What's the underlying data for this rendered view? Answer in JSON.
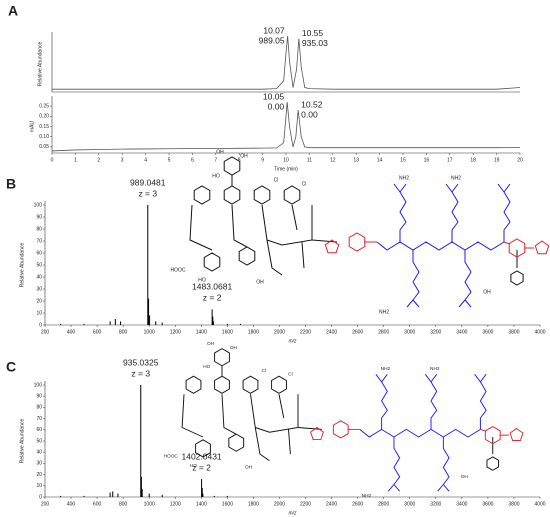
{
  "chart_data": [
    {
      "type": "line",
      "panel": "A",
      "ylabel": "Relative Abundance",
      "color": "#555555",
      "xlim": [
        0,
        20
      ],
      "ylim": [
        0,
        100
      ],
      "x": [
        0,
        1,
        2,
        3,
        4,
        5,
        6,
        7,
        8,
        9,
        9.6,
        9.9,
        10.0,
        10.07,
        10.15,
        10.3,
        10.45,
        10.55,
        10.65,
        10.8,
        11,
        12,
        13,
        14,
        15,
        16,
        17,
        18,
        19,
        20
      ],
      "values": [
        5,
        5,
        5,
        5,
        5,
        5,
        5,
        5,
        5,
        5,
        6,
        20,
        70,
        100,
        55,
        8,
        40,
        95,
        45,
        8,
        6,
        5,
        5,
        5,
        5,
        5,
        5,
        5,
        5,
        8
      ],
      "annotations": [
        {
          "x": 10.07,
          "text": [
            "10.07",
            "989.05"
          ]
        },
        {
          "x": 10.55,
          "text": [
            "10.55",
            "935.03"
          ]
        }
      ]
    },
    {
      "type": "line",
      "ylabel": "mAU",
      "xlabel": "Time (min)",
      "color": "#555555",
      "xlim": [
        0,
        20
      ],
      "xticks": [
        0,
        1,
        2,
        3,
        4,
        5,
        6,
        7,
        8,
        9,
        10,
        11,
        12,
        13,
        14,
        15,
        16,
        17,
        18,
        19,
        20
      ],
      "ylim": [
        0.02,
        0.28
      ],
      "yticks": [
        0.05,
        {
          "value": 0.1,
          "label": "0.10"
        },
        0.15,
        {
          "value": 0.2,
          "label": "0.20"
        },
        0.25
      ],
      "x": [
        0,
        1,
        2,
        3,
        4,
        5,
        6,
        7,
        8,
        9,
        9.6,
        9.9,
        10.0,
        10.05,
        10.15,
        10.3,
        10.42,
        10.52,
        10.65,
        10.8,
        11,
        12,
        13,
        14,
        15,
        16,
        17,
        18,
        19,
        20
      ],
      "values": [
        0.03,
        0.035,
        0.037,
        0.039,
        0.04,
        0.041,
        0.042,
        0.042,
        0.043,
        0.044,
        0.045,
        0.07,
        0.2,
        0.27,
        0.15,
        0.05,
        0.1,
        0.23,
        0.1,
        0.05,
        0.046,
        0.046,
        0.046,
        0.046,
        0.046,
        0.046,
        0.046,
        0.046,
        0.046,
        0.047
      ],
      "annotations": [
        {
          "x": 10.05,
          "text": [
            "10.05",
            "0.00"
          ]
        },
        {
          "x": 10.52,
          "text": [
            "10.52",
            "0.00"
          ]
        }
      ]
    },
    {
      "type": "spectrum",
      "panel": "B",
      "ylabel": "Relative Abundance",
      "xlabel": "m/z",
      "color": "#000000",
      "xlim": [
        200,
        4000
      ],
      "xticks": [
        200,
        400,
        600,
        800,
        1000,
        1200,
        1400,
        1600,
        1800,
        2000,
        2200,
        2400,
        2600,
        2800,
        3000,
        3200,
        3400,
        3600,
        3800,
        4000
      ],
      "ylim": [
        0,
        100
      ],
      "yticks": [
        0,
        10,
        20,
        30,
        40,
        50,
        60,
        70,
        80,
        90,
        100
      ],
      "x": [
        320,
        500,
        700,
        740,
        780,
        989.0481,
        995,
        1003,
        1050,
        1100,
        1483.0681,
        1488,
        1493,
        1600,
        1700
      ],
      "values": [
        1,
        1,
        3,
        5,
        3,
        100,
        22,
        8,
        3,
        2,
        13,
        7,
        3,
        1,
        1
      ],
      "annotations": [
        {
          "x": 989.0481,
          "text": [
            "989.0481",
            "z = 3"
          ]
        },
        {
          "x": 1483.0681,
          "text": [
            "1483.0681",
            "z = 2"
          ]
        }
      ],
      "structure_labels": [
        "OH",
        "OH",
        "HO",
        "Cl",
        "Cl",
        "HOOC",
        "HO",
        "OH",
        "NH2",
        "NH2",
        "NH2",
        "OH"
      ]
    },
    {
      "type": "spectrum",
      "panel": "C",
      "ylabel": "Relative Abundance",
      "xlabel": "m/z",
      "color": "#000000",
      "xlim": [
        200,
        4000
      ],
      "xticks": [
        200,
        400,
        600,
        800,
        1000,
        1200,
        1400,
        1600,
        1800,
        2000,
        2200,
        2400,
        2600,
        2800,
        3000,
        3200,
        3400,
        3600,
        3800,
        4000
      ],
      "ylim": [
        0,
        100
      ],
      "yticks": [
        0,
        10,
        20,
        30,
        40,
        50,
        60,
        70,
        80,
        90,
        100
      ],
      "x": [
        320,
        500,
        700,
        720,
        760,
        935.0325,
        940,
        946,
        1000,
        1100,
        1402.0431,
        1407,
        1412,
        1500,
        1600
      ],
      "values": [
        1,
        1,
        4,
        5,
        3,
        100,
        18,
        7,
        3,
        2,
        16,
        8,
        3,
        1,
        1
      ],
      "annotations": [
        {
          "x": 935.0325,
          "text": [
            "935.0325",
            "z = 3"
          ]
        },
        {
          "x": 1402.0431,
          "text": [
            "1402.0431",
            "z = 2"
          ]
        }
      ],
      "structure_labels": [
        "OH",
        "OH",
        "HO",
        "Cl",
        "Cl",
        "HOOC",
        "HO",
        "OH",
        "NH2",
        "NH2",
        "NH2",
        "OH"
      ]
    }
  ]
}
